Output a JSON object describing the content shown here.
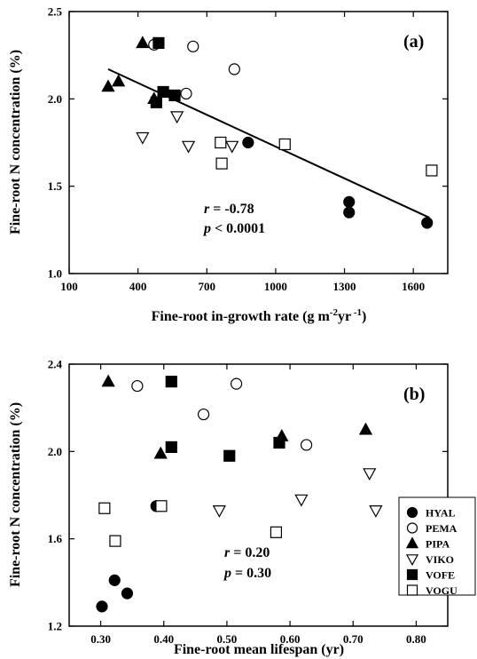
{
  "chart_data": [
    {
      "type": "scatter",
      "panel": "(a)",
      "xlabel_parts": [
        "Fine-root in-growth rate (g m",
        "-2",
        "yr",
        " -1",
        ")"
      ],
      "ylabel": "Fine-root N concentration (%)",
      "xlim": [
        100,
        1750
      ],
      "ylim": [
        1.0,
        2.5
      ],
      "xticks": [
        "100",
        "400",
        "700",
        "1000",
        "1300",
        "1600"
      ],
      "yticks": [
        "1.0",
        "1.5",
        "2.0",
        "2.5"
      ],
      "stats": {
        "r_sym": "r",
        "r_val": " = -0.78",
        "p_sym": "p",
        "p_val": " < 0.0001"
      },
      "regression_line": {
        "x": [
          270,
          1670
        ],
        "y": [
          2.17,
          1.32
        ]
      },
      "series": [
        {
          "name": "HYAL",
          "marker": "circle",
          "fill": "#000000",
          "points": [
            [
              880,
              1.75
            ],
            [
              1320,
              1.41
            ],
            [
              1320,
              1.35
            ],
            [
              1660,
              1.29
            ]
          ]
        },
        {
          "name": "PEMA",
          "marker": "circle",
          "fill": "#ffffff",
          "points": [
            [
              470,
              2.31
            ],
            [
              640,
              2.3
            ],
            [
              820,
              2.17
            ],
            [
              610,
              2.03
            ]
          ]
        },
        {
          "name": "PIPA",
          "marker": "triangle-up",
          "fill": "#000000",
          "points": [
            [
              420,
              2.32
            ],
            [
              270,
              2.07
            ],
            [
              315,
              2.1
            ],
            [
              470,
              2.0
            ]
          ]
        },
        {
          "name": "VIKO",
          "marker": "triangle-down",
          "fill": "#ffffff",
          "points": [
            [
              420,
              1.78
            ],
            [
              570,
              1.9
            ],
            [
              620,
              1.73
            ],
            [
              810,
              1.73
            ]
          ]
        },
        {
          "name": "VOFE",
          "marker": "square",
          "fill": "#000000",
          "points": [
            [
              490,
              2.32
            ],
            [
              510,
              2.04
            ],
            [
              480,
              1.98
            ],
            [
              560,
              2.02
            ]
          ]
        },
        {
          "name": "VOGU",
          "marker": "square",
          "fill": "#ffffff",
          "points": [
            [
              760,
              1.75
            ],
            [
              765,
              1.63
            ],
            [
              1040,
              1.74
            ],
            [
              1680,
              1.59
            ]
          ]
        }
      ]
    },
    {
      "type": "scatter",
      "panel": "(b)",
      "xlabel": "Fine-root mean lifespan (yr)",
      "ylabel": "Fine-root N concentration (%)",
      "xlim": [
        0.25,
        0.85
      ],
      "ylim": [
        1.2,
        2.4
      ],
      "xticks": [
        "0.30",
        "0.40",
        "0.50",
        "0.60",
        "0.70",
        "0.80"
      ],
      "yticks": [
        "1.2",
        "1.6",
        "2.0",
        "2.4"
      ],
      "stats": {
        "r_sym": "r",
        "r_val": " = 0.20",
        "p_sym": "p",
        "p_val": " = 0.30"
      },
      "legend_position": "lower-right",
      "series": [
        {
          "name": "HYAL",
          "marker": "circle",
          "fill": "#000000",
          "points": [
            [
              0.388,
              1.75
            ],
            [
              0.322,
              1.41
            ],
            [
              0.342,
              1.35
            ],
            [
              0.302,
              1.29
            ]
          ]
        },
        {
          "name": "PEMA",
          "marker": "circle",
          "fill": "#ffffff",
          "points": [
            [
              0.358,
              2.3
            ],
            [
              0.515,
              2.31
            ],
            [
              0.463,
              2.17
            ],
            [
              0.626,
              2.03
            ]
          ]
        },
        {
          "name": "PIPA",
          "marker": "triangle-up",
          "fill": "#000000",
          "points": [
            [
              0.312,
              2.32
            ],
            [
              0.395,
              1.99
            ],
            [
              0.587,
              2.07
            ],
            [
              0.72,
              2.1
            ]
          ]
        },
        {
          "name": "VIKO",
          "marker": "triangle-down",
          "fill": "#ffffff",
          "points": [
            [
              0.488,
              1.73
            ],
            [
              0.618,
              1.78
            ],
            [
              0.726,
              1.9
            ],
            [
              0.736,
              1.73
            ]
          ]
        },
        {
          "name": "VOFE",
          "marker": "square",
          "fill": "#000000",
          "points": [
            [
              0.412,
              2.32
            ],
            [
              0.412,
              2.02
            ],
            [
              0.504,
              1.98
            ],
            [
              0.583,
              2.04
            ]
          ]
        },
        {
          "name": "VOGU",
          "marker": "square",
          "fill": "#ffffff",
          "points": [
            [
              0.306,
              1.74
            ],
            [
              0.396,
              1.75
            ],
            [
              0.323,
              1.59
            ],
            [
              0.578,
              1.63
            ]
          ]
        }
      ]
    }
  ]
}
